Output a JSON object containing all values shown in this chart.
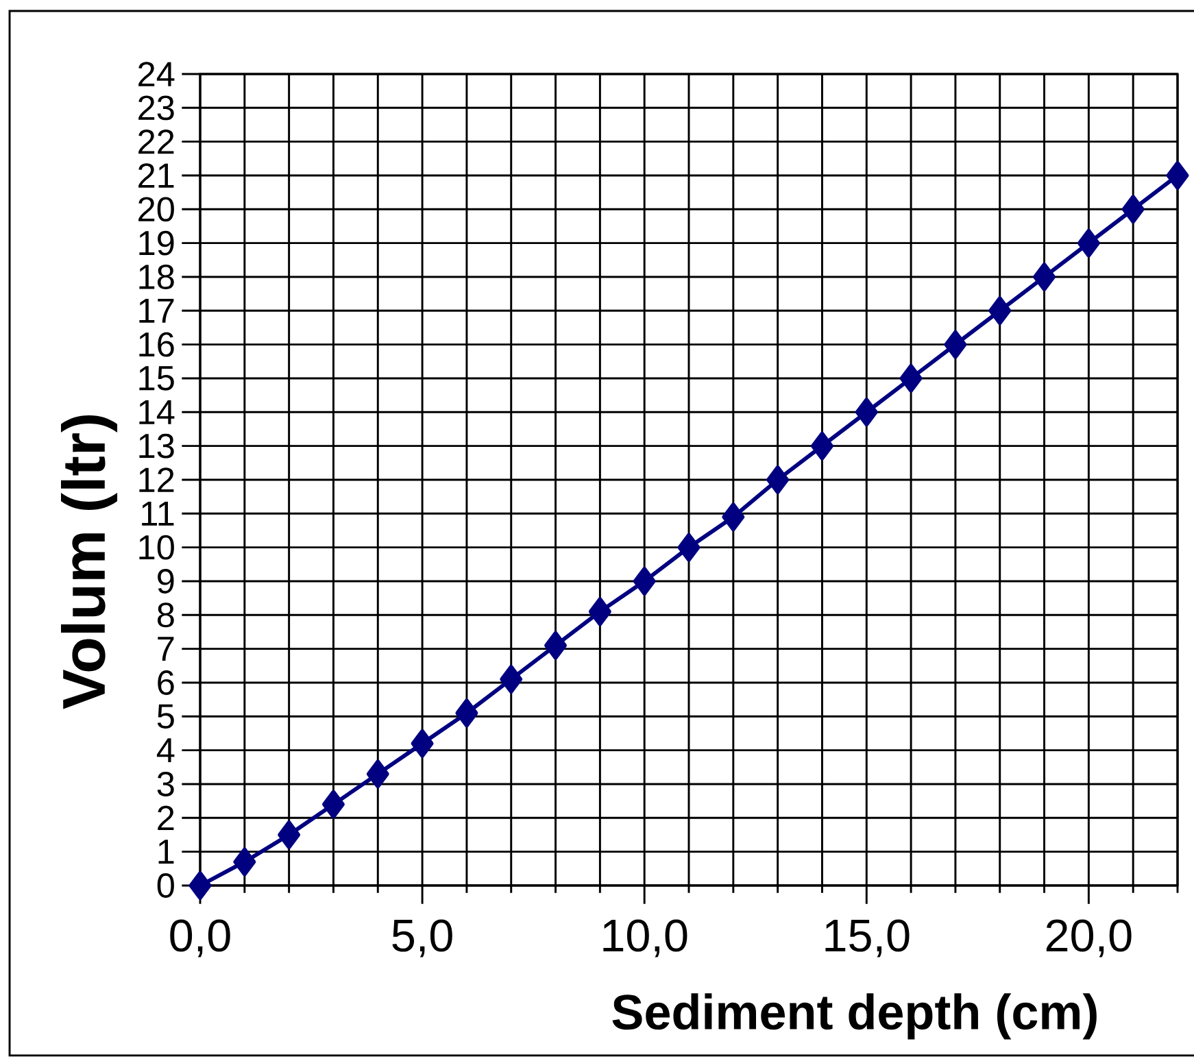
{
  "chart_data": {
    "type": "line",
    "xlabel": "Sediment depth (cm)",
    "ylabel": "Volum (ltr)",
    "x": [
      0,
      1,
      2,
      3,
      4,
      5,
      6,
      7,
      8,
      9,
      10,
      11,
      12,
      13,
      14,
      15,
      16,
      17,
      18,
      19,
      20,
      21,
      22
    ],
    "series": [
      {
        "color": "#000080",
        "values": [
          0,
          0.7,
          1.5,
          2.4,
          3.3,
          4.2,
          5.1,
          6.1,
          7.1,
          8.1,
          9.0,
          10.0,
          10.9,
          12.0,
          13.0,
          14.0,
          15.0,
          16.0,
          17.0,
          18.0,
          19.0,
          20.0,
          21.0
        ]
      }
    ],
    "xlim": [
      0,
      22
    ],
    "ylim": [
      0,
      24
    ],
    "xticks": [
      {
        "value": 0,
        "label": "0,0"
      },
      {
        "value": 1,
        "label": null
      },
      {
        "value": 2,
        "label": null
      },
      {
        "value": 3,
        "label": null
      },
      {
        "value": 4,
        "label": null
      },
      {
        "value": 5,
        "label": "5,0"
      },
      {
        "value": 6,
        "label": null
      },
      {
        "value": 7,
        "label": null
      },
      {
        "value": 8,
        "label": null
      },
      {
        "value": 9,
        "label": null
      },
      {
        "value": 10,
        "label": "10,0"
      },
      {
        "value": 11,
        "label": null
      },
      {
        "value": 12,
        "label": null
      },
      {
        "value": 13,
        "label": null
      },
      {
        "value": 14,
        "label": null
      },
      {
        "value": 15,
        "label": "15,0"
      },
      {
        "value": 16,
        "label": null
      },
      {
        "value": 17,
        "label": null
      },
      {
        "value": 18,
        "label": null
      },
      {
        "value": 19,
        "label": null
      },
      {
        "value": 20,
        "label": "20,0"
      },
      {
        "value": 21,
        "label": null
      },
      {
        "value": 22,
        "label": null
      }
    ],
    "yticks": [
      0,
      1,
      2,
      3,
      4,
      5,
      6,
      7,
      8,
      9,
      10,
      11,
      12,
      13,
      14,
      15,
      16,
      17,
      18,
      19,
      20,
      21,
      22,
      23,
      24
    ],
    "grid": true,
    "marker": "diamond",
    "line_style": "solid"
  }
}
